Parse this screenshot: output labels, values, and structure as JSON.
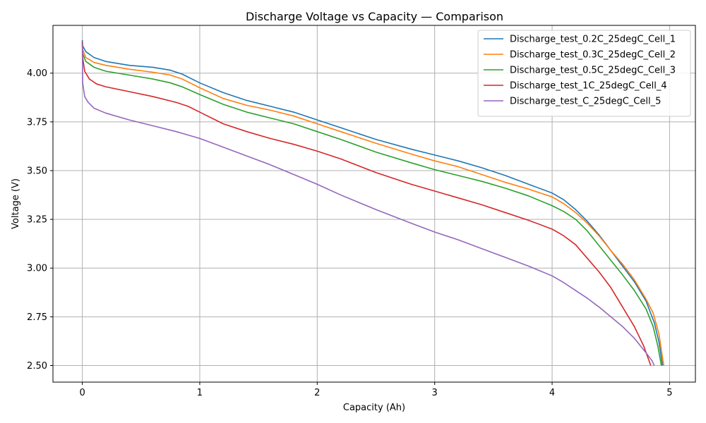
{
  "chart_data": {
    "type": "line",
    "title": "Discharge Voltage vs Capacity — Comparison",
    "xlabel": "Capacity (Ah)",
    "ylabel": "Voltage (V)",
    "xlim": [
      -0.25,
      5.22
    ],
    "ylim": [
      2.415,
      4.245
    ],
    "xticks": [
      0,
      1,
      2,
      3,
      4,
      5
    ],
    "xtick_labels": [
      "0",
      "1",
      "2",
      "3",
      "4",
      "5"
    ],
    "yticks": [
      2.5,
      2.75,
      3.0,
      3.25,
      3.5,
      3.75,
      4.0
    ],
    "ytick_labels": [
      "2.50",
      "2.75",
      "3.00",
      "3.25",
      "3.50",
      "3.75",
      "4.00"
    ],
    "grid": true,
    "legend_position": "top-right",
    "series": [
      {
        "name": "Discharge_test_0.2C_25degC_Cell_1",
        "color": "#1f77b4",
        "x": [
          0,
          0.003,
          0.03,
          0.1,
          0.2,
          0.4,
          0.6,
          0.75,
          0.85,
          1.0,
          1.2,
          1.4,
          1.6,
          1.8,
          2.0,
          2.2,
          2.5,
          2.8,
          3.0,
          3.2,
          3.4,
          3.6,
          3.8,
          4.0,
          4.1,
          4.2,
          4.3,
          4.4,
          4.5,
          4.6,
          4.7,
          4.8,
          4.87,
          4.91,
          4.94
        ],
        "y": [
          4.17,
          4.14,
          4.11,
          4.08,
          4.06,
          4.04,
          4.03,
          4.015,
          3.995,
          3.95,
          3.9,
          3.86,
          3.83,
          3.8,
          3.76,
          3.72,
          3.66,
          3.61,
          3.58,
          3.55,
          3.515,
          3.475,
          3.43,
          3.385,
          3.35,
          3.3,
          3.24,
          3.17,
          3.09,
          3.01,
          2.93,
          2.83,
          2.72,
          2.62,
          2.5
        ]
      },
      {
        "name": "Discharge_test_0.3C_25degC_Cell_2",
        "color": "#ff7f0e",
        "x": [
          0,
          0.003,
          0.03,
          0.1,
          0.2,
          0.4,
          0.6,
          0.75,
          0.85,
          1.0,
          1.2,
          1.4,
          1.6,
          1.8,
          2.0,
          2.2,
          2.5,
          2.8,
          3.0,
          3.2,
          3.4,
          3.6,
          3.8,
          4.0,
          4.1,
          4.2,
          4.3,
          4.4,
          4.5,
          4.6,
          4.7,
          4.8,
          4.86,
          4.91,
          4.95
        ],
        "y": [
          4.16,
          4.12,
          4.08,
          4.055,
          4.04,
          4.02,
          4.005,
          3.99,
          3.97,
          3.925,
          3.87,
          3.835,
          3.81,
          3.78,
          3.74,
          3.7,
          3.64,
          3.585,
          3.55,
          3.52,
          3.48,
          3.44,
          3.405,
          3.365,
          3.33,
          3.285,
          3.23,
          3.165,
          3.09,
          3.02,
          2.94,
          2.84,
          2.77,
          2.66,
          2.5
        ]
      },
      {
        "name": "Discharge_test_0.5C_25degC_Cell_3",
        "color": "#2ca02c",
        "x": [
          0,
          0.003,
          0.03,
          0.1,
          0.2,
          0.4,
          0.6,
          0.75,
          0.85,
          1.0,
          1.2,
          1.4,
          1.6,
          1.8,
          2.0,
          2.2,
          2.5,
          2.8,
          3.0,
          3.2,
          3.4,
          3.6,
          3.8,
          4.0,
          4.1,
          4.2,
          4.3,
          4.4,
          4.5,
          4.6,
          4.7,
          4.8,
          4.86,
          4.9,
          4.93
        ],
        "y": [
          4.15,
          4.1,
          4.06,
          4.03,
          4.01,
          3.99,
          3.97,
          3.95,
          3.93,
          3.89,
          3.84,
          3.8,
          3.77,
          3.74,
          3.7,
          3.66,
          3.595,
          3.54,
          3.505,
          3.475,
          3.445,
          3.41,
          3.37,
          3.32,
          3.29,
          3.25,
          3.19,
          3.115,
          3.04,
          2.965,
          2.885,
          2.79,
          2.7,
          2.6,
          2.5
        ]
      },
      {
        "name": "Discharge_test_1C_25degC_Cell_4",
        "color": "#d62728",
        "x": [
          0,
          0.003,
          0.02,
          0.06,
          0.12,
          0.2,
          0.4,
          0.6,
          0.8,
          0.9,
          1.0,
          1.2,
          1.4,
          1.6,
          1.8,
          2.0,
          2.2,
          2.5,
          2.8,
          3.0,
          3.2,
          3.4,
          3.6,
          3.8,
          4.0,
          4.1,
          4.2,
          4.3,
          4.4,
          4.5,
          4.6,
          4.7,
          4.78,
          4.84
        ],
        "y": [
          4.16,
          4.08,
          4.01,
          3.97,
          3.945,
          3.93,
          3.905,
          3.88,
          3.85,
          3.83,
          3.8,
          3.74,
          3.7,
          3.665,
          3.635,
          3.6,
          3.56,
          3.49,
          3.43,
          3.395,
          3.36,
          3.325,
          3.285,
          3.245,
          3.2,
          3.165,
          3.12,
          3.05,
          2.98,
          2.9,
          2.8,
          2.7,
          2.6,
          2.5
        ]
      },
      {
        "name": "Discharge_test_C_25degC_Cell_5",
        "color": "#9467bd",
        "x": [
          0,
          0.003,
          0.02,
          0.05,
          0.1,
          0.2,
          0.4,
          0.6,
          0.8,
          1.0,
          1.2,
          1.4,
          1.6,
          1.8,
          2.0,
          2.2,
          2.5,
          2.8,
          3.0,
          3.2,
          3.4,
          3.6,
          3.8,
          4.0,
          4.1,
          4.2,
          4.3,
          4.4,
          4.5,
          4.6,
          4.7,
          4.8,
          4.85,
          4.87
        ],
        "y": [
          4.15,
          3.95,
          3.88,
          3.85,
          3.82,
          3.795,
          3.76,
          3.73,
          3.7,
          3.665,
          3.62,
          3.575,
          3.53,
          3.48,
          3.43,
          3.375,
          3.3,
          3.23,
          3.185,
          3.145,
          3.1,
          3.055,
          3.01,
          2.96,
          2.925,
          2.885,
          2.845,
          2.8,
          2.75,
          2.7,
          2.64,
          2.565,
          2.525,
          2.5
        ]
      }
    ]
  }
}
